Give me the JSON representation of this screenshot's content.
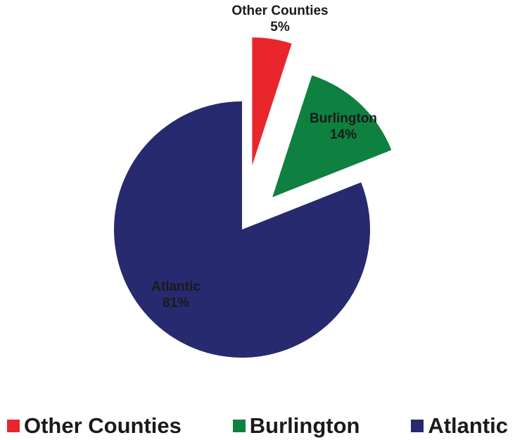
{
  "chart_data": {
    "type": "pie",
    "title": "",
    "slices": [
      {
        "label": "Other Counties",
        "value": 5,
        "percent_label": "5%",
        "color": "#e8262c"
      },
      {
        "label": "Burlington",
        "value": 14,
        "percent_label": "14%",
        "color": "#0e8040"
      },
      {
        "label": "Atlantic",
        "value": 81,
        "percent_label": "81%",
        "color": "#272a6e"
      }
    ],
    "label_color": "#1a1a1a",
    "legend_position": "bottom"
  }
}
